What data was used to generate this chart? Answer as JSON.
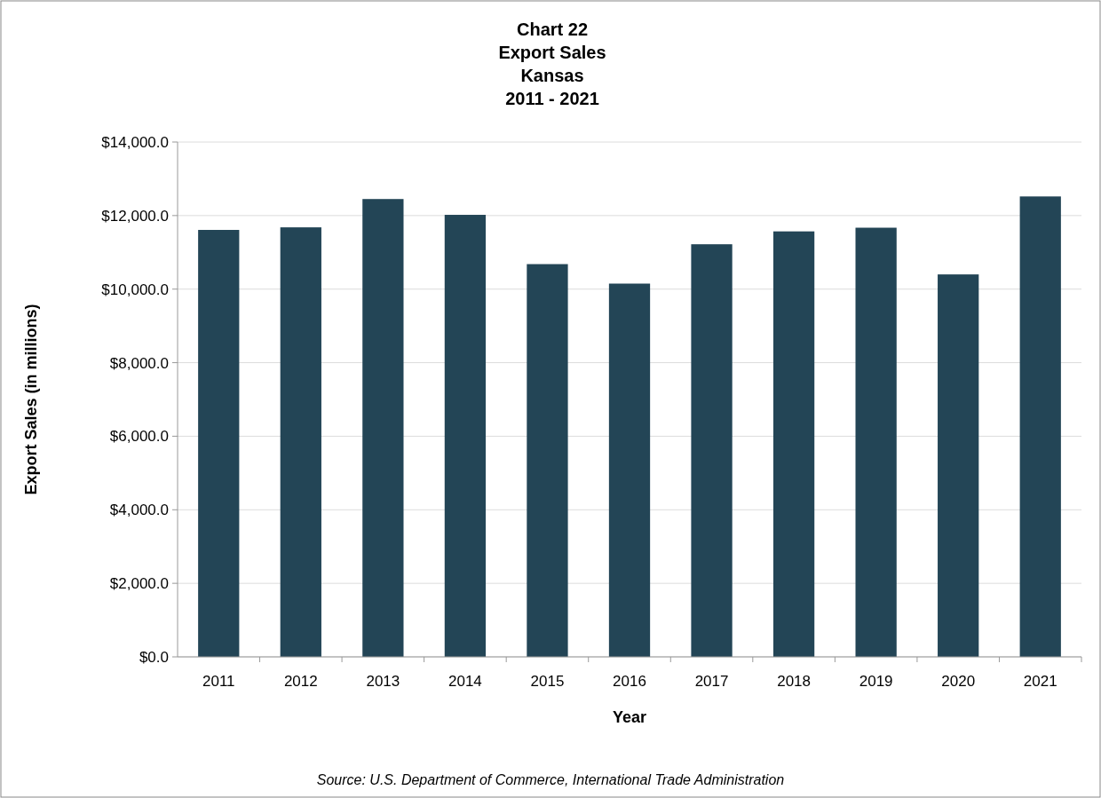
{
  "chart_data": {
    "type": "bar",
    "title": "Chart 22\nExport Sales\nKansas\n2011 - 2021",
    "xlabel": "Year",
    "ylabel": "Export Sales (in millions)",
    "annotations": [
      "Source: U.S. Department of Commerce, International Trade Administration"
    ],
    "categories": [
      "2011",
      "2012",
      "2013",
      "2014",
      "2015",
      "2016",
      "2017",
      "2018",
      "2019",
      "2020",
      "2021"
    ],
    "values": [
      11610,
      11680,
      12450,
      12020,
      10680,
      10150,
      11220,
      11570,
      11670,
      10400,
      12520
    ],
    "color": "#234556",
    "ylim": [
      0,
      14000
    ],
    "yticks": [
      {
        "value": 0,
        "label": "$0.0"
      },
      {
        "value": 2000,
        "label": "$2,000.0"
      },
      {
        "value": 4000,
        "label": "$4,000.0"
      },
      {
        "value": 6000,
        "label": "$6,000.0"
      },
      {
        "value": 8000,
        "label": "$8,000.0"
      },
      {
        "value": 10000,
        "label": "$10,000.0"
      },
      {
        "value": 12000,
        "label": "$12,000.0"
      },
      {
        "value": 14000,
        "label": "$14,000.0"
      }
    ],
    "grid": "y"
  }
}
